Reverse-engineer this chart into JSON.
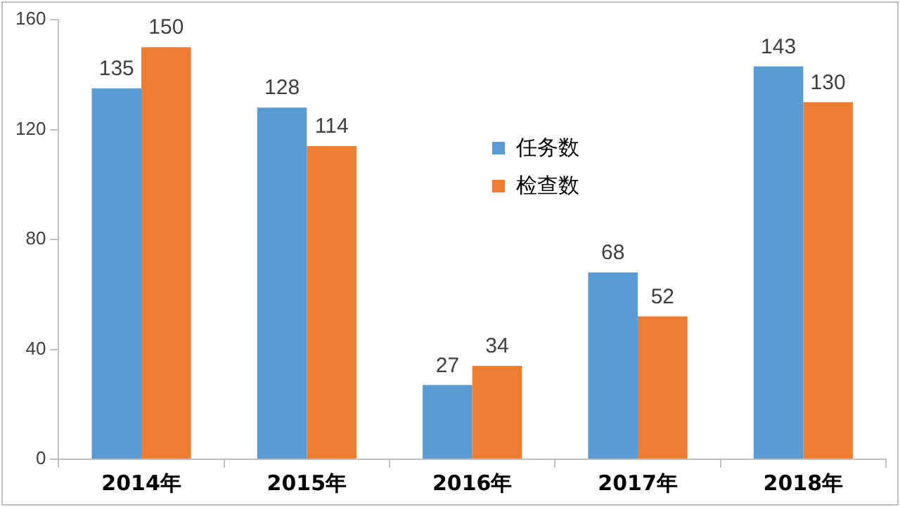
{
  "chart_data": {
    "type": "bar",
    "categories": [
      "2014年",
      "2015年",
      "2016年",
      "2017年",
      "2018年"
    ],
    "series": [
      {
        "name": "任务数",
        "color": "#5b9bd5",
        "values": [
          135,
          128,
          27,
          68,
          143
        ]
      },
      {
        "name": "检查数",
        "color": "#ed7d31",
        "values": [
          150,
          114,
          34,
          52,
          130
        ]
      }
    ],
    "ylim": [
      0,
      160
    ],
    "yticks": [
      0,
      40,
      80,
      120,
      160
    ],
    "grid": false,
    "legend": "center",
    "data_labels": true
  }
}
